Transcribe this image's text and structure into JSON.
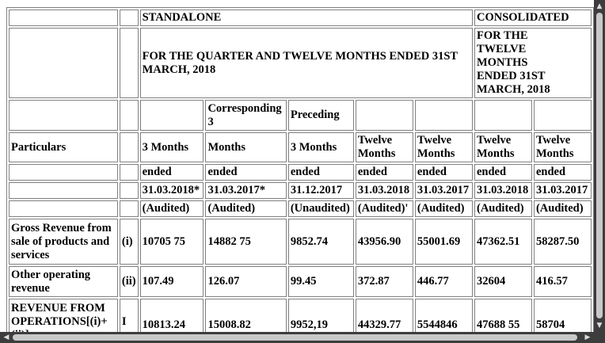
{
  "table": {
    "standalone_label": "STANDALONE",
    "consolidated_label": "CONSOLIDATED",
    "standalone_period": "FOR THE QUARTER AND TWELVE MONTHS ENDED 31ST MARCH, 2018",
    "consolidated_period": "FOR THE TWELVE MONTHS ENDED 31ST MARCH, 2018",
    "row3": [
      "",
      "Corresponding 3",
      "Preceding",
      "",
      "",
      "",
      ""
    ],
    "particulars_label": "Particulars",
    "row4": [
      "3 Months",
      "Months",
      "3 Months",
      "Twelve Months",
      "Twelve Months",
      "Twelve Months",
      "Twelve Months"
    ],
    "row5": [
      "ended",
      "ended",
      "ended",
      "ended",
      "ended",
      "ended",
      "ended"
    ],
    "row6": [
      "31.03.2018*",
      "31.03.2017*",
      "31.12.2017",
      "31.03.2018",
      "31.03.2017",
      "31.03.2018",
      "31.03.2017"
    ],
    "row7": [
      "(Audited)",
      "(Audited)",
      "(Unaudited)",
      "(Audited)'",
      "(Audited)",
      "(Audited)",
      "(Audited)"
    ],
    "rows": [
      {
        "label": "Gross Revenue from sale of products and services",
        "num": "(i)",
        "values": [
          "10705 75",
          "14882 75",
          "9852.74",
          "43956.90",
          "55001.69",
          "47362.51",
          "58287.50"
        ]
      },
      {
        "label": "Other operating revenue",
        "num": "(ii)",
        "values": [
          "107.49",
          "126.07",
          "99.45",
          "372.87",
          "446.77",
          "32604",
          "416.57"
        ]
      },
      {
        "label": "REVENUE FROM OPERATIONS[(i)+(ii)]",
        "num": "I",
        "values": [
          "10813.24",
          "15008.82",
          "9952,19",
          "44329.77",
          "5544846",
          "47688 55",
          "58704"
        ]
      }
    ]
  },
  "scrollbars": {
    "up": "▲",
    "down": "▼",
    "left": "◀",
    "right": "▶"
  }
}
